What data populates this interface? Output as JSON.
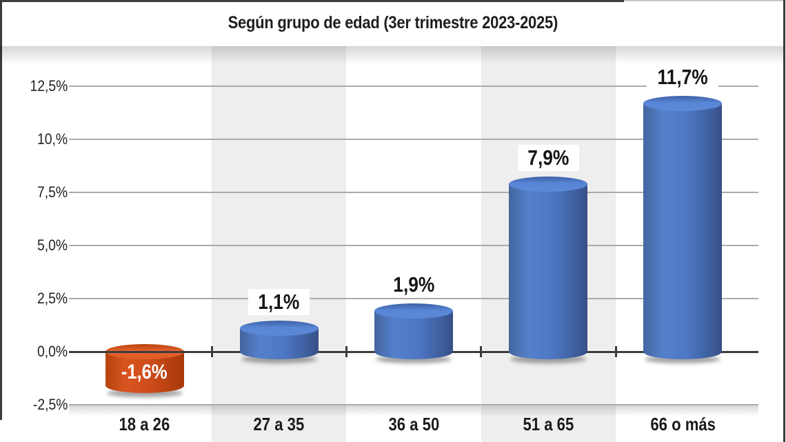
{
  "chart_data": {
    "type": "bar",
    "title": "Según grupo de edad (3er trimestre 2023-2025)",
    "categories": [
      "18 a 26",
      "27 a 35",
      "36 a 50",
      "51 a 65",
      "66 o más"
    ],
    "values": [
      -1.6,
      1.1,
      1.9,
      7.9,
      11.7
    ],
    "value_labels": [
      "-1,6%",
      "1,1%",
      "1,9%",
      "7,9%",
      "11,7%"
    ],
    "ytick_values": [
      12.5,
      10,
      7.5,
      5,
      2.5,
      0,
      -2.5
    ],
    "ytick_labels": [
      "12,5%",
      "10,%",
      "7,5%",
      "5,0%",
      "2,5%",
      "0,0%",
      "-2,5%"
    ],
    "ylim": [
      -2.5,
      12.5
    ],
    "xlabel": "",
    "ylabel": "",
    "grid": true,
    "legend": false,
    "shaded_columns": [
      1,
      3
    ],
    "colors": {
      "positive_bar": "#4a72bf",
      "negative_bar": "#cf4c1b",
      "column_band": "#eeeeee",
      "gridline": "#aaaaaa",
      "zero_line": "#3b3b3b",
      "label_text": "#151515",
      "negative_label_text": "#ffffff"
    }
  }
}
